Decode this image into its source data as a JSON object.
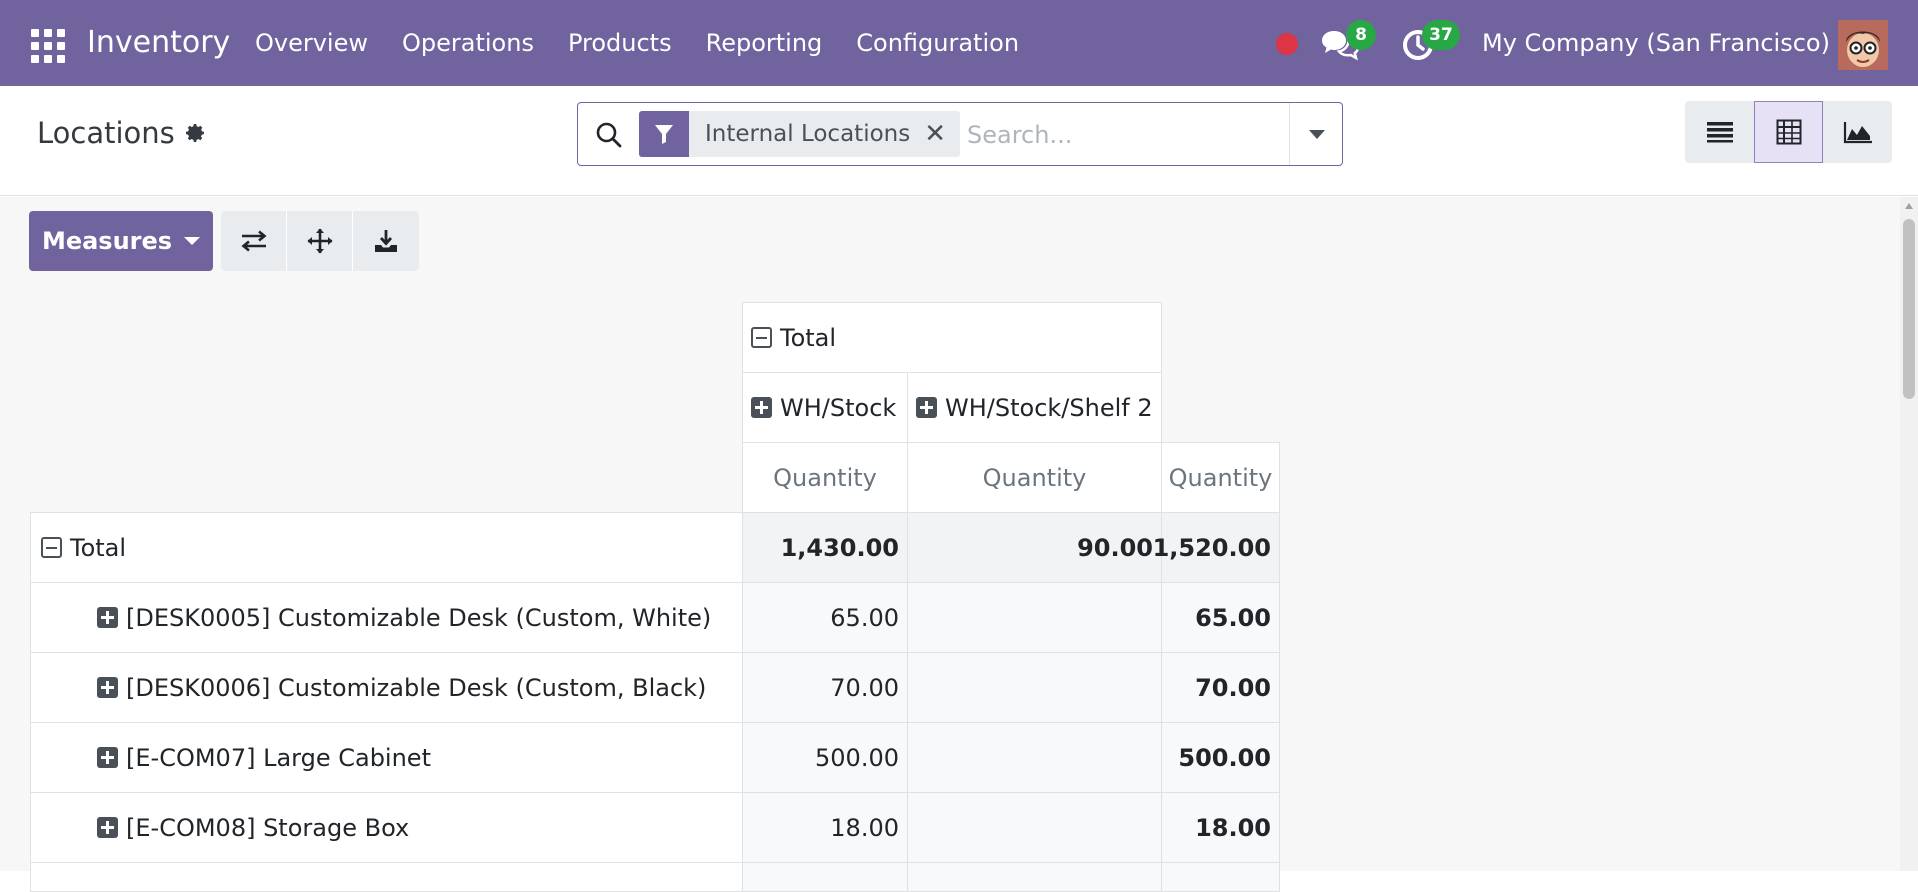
{
  "navbar": {
    "brand": "Inventory",
    "menu": [
      "Overview",
      "Operations",
      "Products",
      "Reporting",
      "Configuration"
    ],
    "chat_badge": "8",
    "activity_badge": "37",
    "company": "My Company (San Francisco)",
    "colors": {
      "primary": "#71639e",
      "badge": "#28a745",
      "recording": "#dc3545"
    }
  },
  "control_panel": {
    "breadcrumb": "Locations",
    "search": {
      "facet_label": "Internal Locations",
      "facet_remove": "✕",
      "placeholder": "Search..."
    },
    "views": [
      "list",
      "pivot",
      "graph"
    ],
    "active_view": "pivot"
  },
  "pivot": {
    "measures_label": "Measures",
    "col_total_header": "Total",
    "col_groups": [
      "WH/Stock",
      "WH/Stock/Shelf 2"
    ],
    "measure_label": "Quantity",
    "row_total_header": "Total",
    "totals": [
      "1,430.00",
      "90.00",
      "1,520.00"
    ],
    "rows": [
      {
        "label": "[DESK0005] Customizable Desk (Custom, White)",
        "stock": "65.00",
        "shelf2": "",
        "total": "65.00"
      },
      {
        "label": "[DESK0006] Customizable Desk (Custom, Black)",
        "stock": "70.00",
        "shelf2": "",
        "total": "70.00"
      },
      {
        "label": "[E-COM07] Large Cabinet",
        "stock": "500.00",
        "shelf2": "",
        "total": "500.00"
      },
      {
        "label": "[E-COM08] Storage Box",
        "stock": "18.00",
        "shelf2": "",
        "total": "18.00"
      }
    ]
  }
}
